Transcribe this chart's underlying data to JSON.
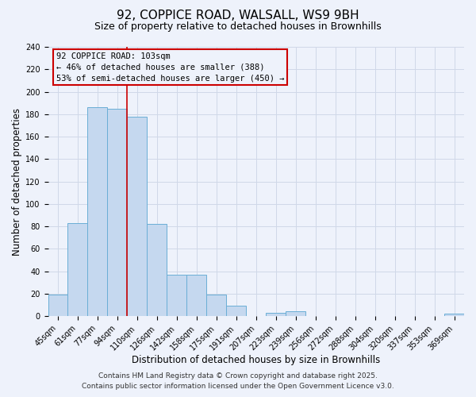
{
  "title": "92, COPPICE ROAD, WALSALL, WS9 9BH",
  "subtitle": "Size of property relative to detached houses in Brownhills",
  "xlabel": "Distribution of detached houses by size in Brownhills",
  "ylabel": "Number of detached properties",
  "bins": [
    "45sqm",
    "61sqm",
    "77sqm",
    "94sqm",
    "110sqm",
    "126sqm",
    "142sqm",
    "158sqm",
    "175sqm",
    "191sqm",
    "207sqm",
    "223sqm",
    "239sqm",
    "256sqm",
    "272sqm",
    "288sqm",
    "304sqm",
    "320sqm",
    "337sqm",
    "353sqm",
    "369sqm"
  ],
  "values": [
    19,
    83,
    186,
    185,
    178,
    82,
    37,
    37,
    19,
    9,
    0,
    3,
    4,
    0,
    0,
    0,
    0,
    0,
    0,
    0,
    2
  ],
  "bar_color": "#c5d8ef",
  "bar_edge_color": "#6aaed6",
  "vline_x_index": 3.5,
  "vline_color": "#cc0000",
  "annotation_title": "92 COPPICE ROAD: 103sqm",
  "annotation_line1": "← 46% of detached houses are smaller (388)",
  "annotation_line2": "53% of semi-detached houses are larger (450) →",
  "annotation_box_color": "#cc0000",
  "footer_line1": "Contains HM Land Registry data © Crown copyright and database right 2025.",
  "footer_line2": "Contains public sector information licensed under the Open Government Licence v3.0.",
  "ylim": [
    0,
    240
  ],
  "yticks": [
    0,
    20,
    40,
    60,
    80,
    100,
    120,
    140,
    160,
    180,
    200,
    220,
    240
  ],
  "background_color": "#eef2fb",
  "grid_color": "#d0d8e8",
  "title_fontsize": 11,
  "subtitle_fontsize": 9,
  "axis_label_fontsize": 8.5,
  "tick_fontsize": 7,
  "footer_fontsize": 6.5,
  "annotation_fontsize": 7.5
}
